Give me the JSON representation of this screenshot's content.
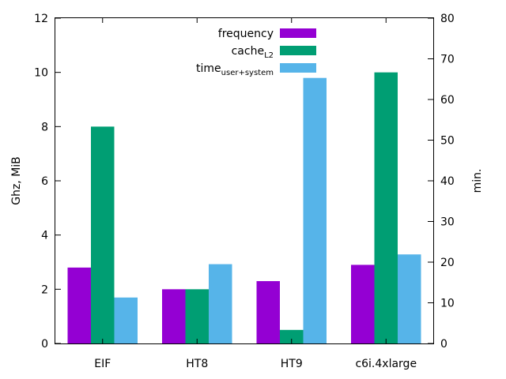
{
  "chart_data": {
    "type": "bar",
    "categories": [
      "EIF",
      "HT8",
      "HT9",
      "c6i.4xlarge"
    ],
    "ylabel": "Ghz, MiB",
    "y2label": "min.",
    "ylim": [
      0,
      12
    ],
    "y2lim": [
      0,
      80
    ],
    "yticks": [
      "0",
      "2",
      "4",
      "6",
      "8",
      "10",
      "12"
    ],
    "y2ticks": [
      "0",
      "10",
      "20",
      "30",
      "40",
      "50",
      "60",
      "70",
      "80"
    ],
    "legend_position": "top-center",
    "grid": false,
    "series": [
      {
        "name": "frequency",
        "axis": "left",
        "color": "#9400d3",
        "values": [
          2.8,
          2.0,
          2.3,
          2.9
        ]
      },
      {
        "name": "cache",
        "name_sub": "L2",
        "axis": "left",
        "color": "#009e73",
        "values": [
          8.0,
          2.0,
          0.5,
          10.0
        ]
      },
      {
        "name": "time",
        "name_sub": "user+system",
        "axis": "right",
        "color": "#56b4e9",
        "values": [
          11.3,
          19.5,
          65.3,
          21.9
        ]
      }
    ]
  }
}
